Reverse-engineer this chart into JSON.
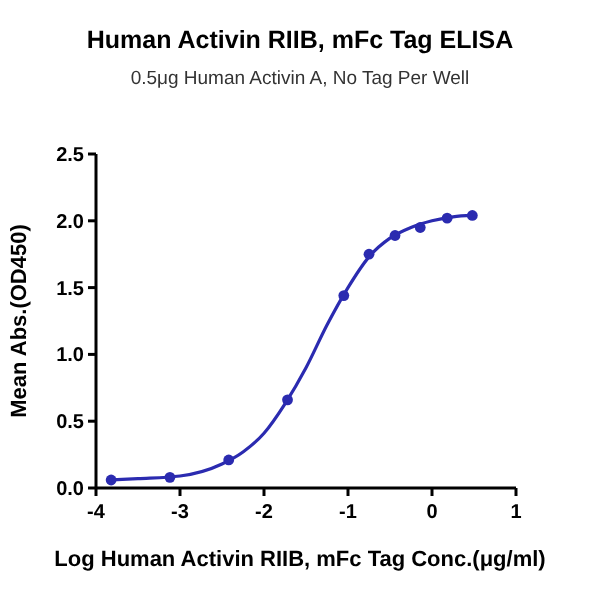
{
  "chart_data": {
    "type": "scatter",
    "title": "Human Activin RIIB, mFc Tag ELISA",
    "subtitle": "0.5μg Human Activin A, No Tag Per Well",
    "xlabel": "Log Human Activin RIIB, mFc Tag Conc.(μg/ml)",
    "ylabel": "Mean Abs.(OD450)",
    "series": [
      {
        "type": "scatter",
        "color": "#2b2bb0",
        "marker": "circle",
        "x": [
          -3.82,
          -3.12,
          -2.42,
          -1.72,
          -1.05,
          -0.75,
          -0.44,
          -0.14,
          0.18,
          0.48
        ],
        "values": [
          0.06,
          0.08,
          0.21,
          0.66,
          1.44,
          1.75,
          1.89,
          1.95,
          2.02,
          2.04
        ]
      },
      {
        "type": "line",
        "color": "#2b2bb0",
        "marker": "none",
        "line_style": "solid",
        "x": [
          -3.82,
          -3.5,
          -3,
          -2.5,
          -2.25,
          -2,
          -1.75,
          -1.5,
          -1.25,
          -1,
          -0.75,
          -0.5,
          -0.25,
          0,
          0.25,
          0.48
        ],
        "values": [
          0.06,
          0.07,
          0.09,
          0.18,
          0.27,
          0.41,
          0.63,
          0.9,
          1.22,
          1.5,
          1.73,
          1.87,
          1.95,
          2.0,
          2.03,
          2.04
        ]
      }
    ],
    "xlim": [
      -4,
      1
    ],
    "xticks": [
      -4,
      -3,
      -2,
      -1,
      0,
      1
    ],
    "ylim": [
      0,
      2.5
    ],
    "yticks": [
      {
        "value": 0,
        "label": "0.0"
      },
      {
        "value": 0.5,
        "label": "0.5"
      },
      {
        "value": 1,
        "label": "1.0"
      },
      {
        "value": 1.5,
        "label": "1.5"
      },
      {
        "value": 2,
        "label": "2.0"
      },
      {
        "value": 2.5,
        "label": "2.5"
      }
    ],
    "grid": false
  }
}
